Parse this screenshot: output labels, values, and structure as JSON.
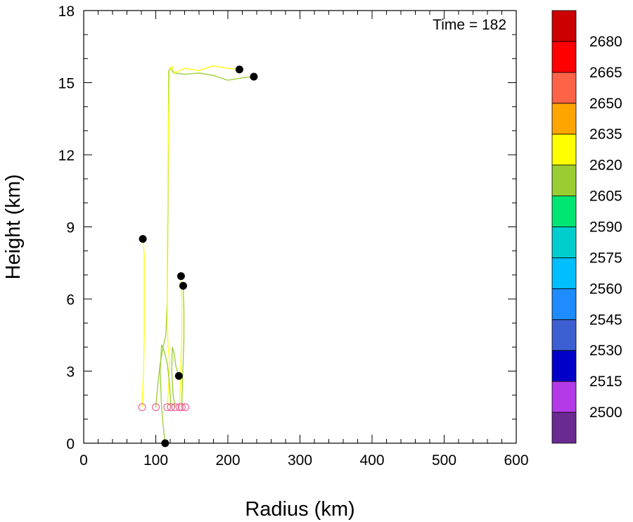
{
  "chart_data": {
    "type": "line",
    "annotation": "Time = 182",
    "xlabel": "Radius (km)",
    "ylabel": "Height (km)",
    "xlim": [
      0,
      600
    ],
    "ylim": [
      0,
      18
    ],
    "xticks": [
      0,
      100,
      200,
      300,
      400,
      500,
      600
    ],
    "yticks": [
      0,
      3,
      6,
      9,
      12,
      15,
      18
    ],
    "grid": false,
    "colorbar": {
      "colors": [
        "#6b2a91",
        "#b33ae6",
        "#0000c8",
        "#3c5fd2",
        "#1e8cff",
        "#00bfff",
        "#00cdcd",
        "#00e673",
        "#9acd32",
        "#ffff00",
        "#ffa500",
        "#ff6347",
        "#ff0000",
        "#cc0000"
      ],
      "labels": [
        "2500",
        "2515",
        "2530",
        "2545",
        "2560",
        "2575",
        "2590",
        "2605",
        "2620",
        "2635",
        "2650",
        "2665",
        "2680"
      ]
    },
    "series": [
      {
        "color": "#ffff00",
        "start": [
          81,
          1.5
        ],
        "end": [
          82,
          8.5
        ],
        "x": [
          81,
          83,
          84,
          84,
          84,
          84,
          83,
          82
        ],
        "y": [
          1.5,
          3.0,
          4.5,
          6.0,
          7.0,
          7.8,
          8.2,
          8.5
        ]
      },
      {
        "color": "#9acd32",
        "start": [
          100,
          1.5
        ],
        "end": [
          236,
          15.25
        ],
        "x": [
          100,
          103,
          106,
          110,
          114,
          116,
          117,
          118,
          120,
          125,
          140,
          160,
          180,
          200,
          220,
          236
        ],
        "y": [
          1.5,
          2.5,
          3.3,
          4.0,
          4.5,
          6.0,
          10.0,
          15.5,
          15.6,
          15.4,
          15.35,
          15.4,
          15.3,
          15.1,
          15.2,
          15.25
        ]
      },
      {
        "color": "#ffff00",
        "start": [
          116,
          1.5
        ],
        "end": [
          216,
          15.55
        ],
        "x": [
          116,
          118,
          119,
          117,
          116,
          116,
          117,
          119,
          122,
          126,
          140,
          160,
          180,
          200,
          216
        ],
        "y": [
          1.5,
          2.5,
          3.5,
          4.0,
          5.0,
          8.0,
          12.0,
          15.5,
          15.7,
          15.4,
          15.6,
          15.5,
          15.7,
          15.6,
          15.55
        ]
      },
      {
        "color": "#9acd32",
        "start": [
          121,
          1.5
        ],
        "end": [
          113,
          0.0
        ],
        "x": [
          121,
          119,
          116,
          112,
          108,
          106,
          108,
          111,
          113
        ],
        "y": [
          1.5,
          2.5,
          3.3,
          3.8,
          4.1,
          3.0,
          1.5,
          0.5,
          0.0
        ]
      },
      {
        "color": "#9acd32",
        "start": [
          127,
          1.5
        ],
        "end": [
          132,
          2.8
        ],
        "x": [
          127,
          124,
          122,
          123,
          125,
          128,
          131,
          132
        ],
        "y": [
          1.5,
          2.0,
          3.0,
          4.0,
          3.8,
          3.2,
          2.9,
          2.8
        ]
      },
      {
        "color": "#ffff00",
        "start": [
          133,
          1.5
        ],
        "end": [
          135,
          6.95
        ],
        "x": [
          133,
          134,
          135,
          136,
          136,
          135
        ],
        "y": [
          1.5,
          2.5,
          3.5,
          4.5,
          6.0,
          6.95
        ]
      },
      {
        "color": "#9acd32",
        "start": [
          136,
          1.5
        ],
        "end": [
          138,
          6.55
        ],
        "x": [
          136,
          137,
          138,
          139,
          139,
          138
        ],
        "y": [
          1.5,
          2.5,
          3.5,
          4.3,
          5.5,
          6.55
        ]
      },
      {
        "color": "#9acd32",
        "start": [
          141,
          1.5
        ],
        "end": [
          141,
          1.5
        ],
        "x": [
          141
        ],
        "y": [
          1.5
        ]
      }
    ]
  }
}
